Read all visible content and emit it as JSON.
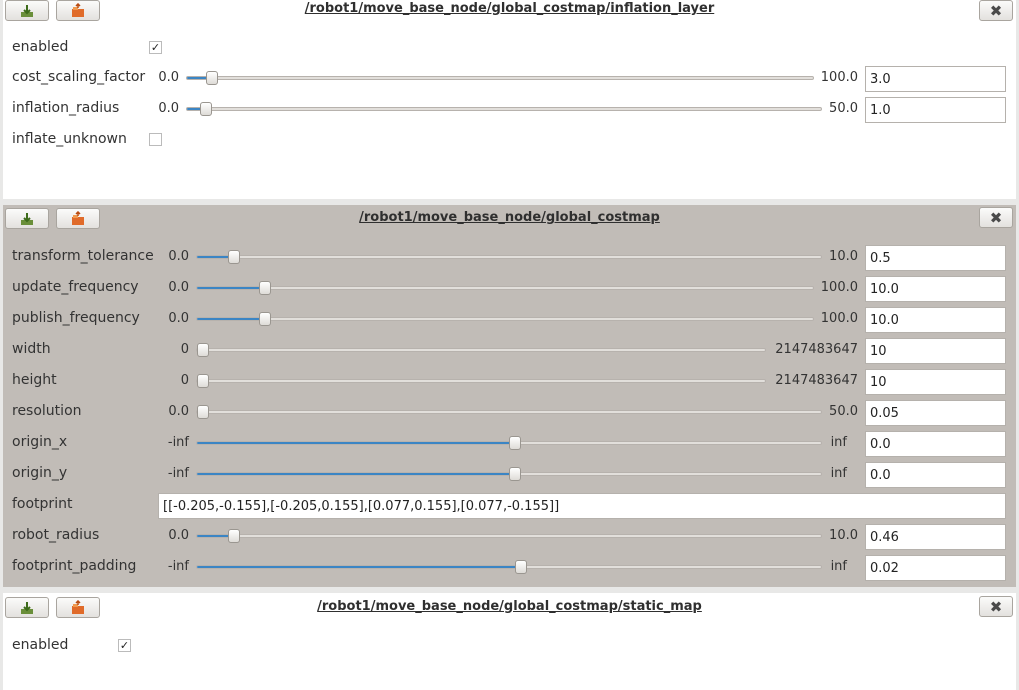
{
  "panels": {
    "inflation": {
      "title": "/robot1/move_base_node/global_costmap/inflation_layer",
      "enabled": {
        "label": "enabled",
        "checked": true,
        "mark": "✓"
      },
      "cost_scaling_factor": {
        "label": "cost_scaling_factor",
        "min": "0.0",
        "max": "100.0",
        "value": "3.0",
        "fraction": 0.03
      },
      "inflation_radius": {
        "label": "inflation_radius",
        "min": "0.0",
        "max": "50.0",
        "value": "1.0",
        "fraction": 0.02
      },
      "inflate_unknown": {
        "label": "inflate_unknown",
        "checked": false
      }
    },
    "global": {
      "title": "/robot1/move_base_node/global_costmap",
      "transform_tolerance": {
        "label": "transform_tolerance",
        "min": "0.0",
        "max": "10.0",
        "value": "0.5",
        "fraction": 0.05
      },
      "update_frequency": {
        "label": "update_frequency",
        "min": "0.0",
        "max": "100.0",
        "value": "10.0",
        "fraction": 0.1
      },
      "publish_frequency": {
        "label": "publish_frequency",
        "min": "0.0",
        "max": "100.0",
        "value": "10.0",
        "fraction": 0.1
      },
      "width": {
        "label": "width",
        "min": "0",
        "max": "2147483647",
        "value": "10",
        "fraction": 0.0
      },
      "height": {
        "label": "height",
        "min": "0",
        "max": "2147483647",
        "value": "10",
        "fraction": 0.0
      },
      "resolution": {
        "label": "resolution",
        "min": "0.0",
        "max": "50.0",
        "value": "0.05",
        "fraction": 0.0
      },
      "origin_x": {
        "label": "origin_x",
        "min": "-inf",
        "max": "inf",
        "value": "0.0",
        "fraction": 0.5
      },
      "origin_y": {
        "label": "origin_y",
        "min": "-inf",
        "max": "inf",
        "value": "0.0",
        "fraction": 0.5
      },
      "footprint": {
        "label": "footprint",
        "value": "[[-0.205,-0.155],[-0.205,0.155],[0.077,0.155],[0.077,-0.155]]"
      },
      "robot_radius": {
        "label": "robot_radius",
        "min": "0.0",
        "max": "10.0",
        "value": "0.46",
        "fraction": 0.05
      },
      "footprint_padding": {
        "label": "footprint_padding",
        "min": "-inf",
        "max": "inf",
        "value": "0.02",
        "fraction": 0.51
      }
    },
    "static": {
      "title": "/robot1/move_base_node/global_costmap/static_map",
      "enabled": {
        "label": "enabled",
        "checked": true,
        "mark": "✓"
      }
    }
  },
  "icons": {
    "save": "save-icon",
    "load": "load-icon",
    "close": "close-icon",
    "close_glyph": "✖"
  },
  "colors": {
    "slider_fill": "#3b85c4",
    "dark_panel": "#c1bcb7"
  }
}
